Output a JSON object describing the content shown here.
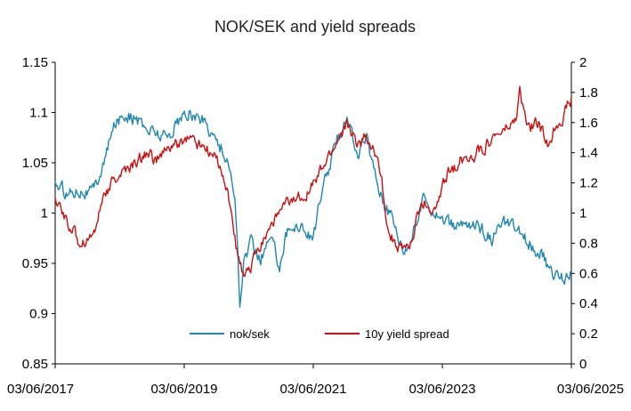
{
  "chart_data": {
    "type": "line",
    "title": "NOK/SEK and yield spreads",
    "grid": false,
    "legend_position": "bottom-center",
    "x_ticks": [
      "03/06/2017",
      "03/06/2019",
      "03/06/2021",
      "03/06/2023",
      "03/06/2025"
    ],
    "y_left": {
      "range": [
        0.85,
        1.15
      ],
      "ticks": [
        "0.85",
        "0.9",
        "0.95",
        "1",
        "1.05",
        "1.1",
        "1.15"
      ]
    },
    "y_right": {
      "range": [
        0,
        2
      ],
      "ticks": [
        "0",
        "0.2",
        "0.4",
        "0.6",
        "0.8",
        "1",
        "1.2",
        "1.4",
        "1.6",
        "1.8",
        "2"
      ]
    },
    "series": [
      {
        "name": "nok/sek",
        "axis": "left",
        "color": "#1f87b0",
        "x": [
          2017.42,
          2017.6,
          2017.8,
          2018.0,
          2018.2,
          2018.35,
          2018.5,
          2018.65,
          2018.8,
          2019.0,
          2019.15,
          2019.3,
          2019.5,
          2019.75,
          2019.9,
          2020.0,
          2020.1,
          2020.2,
          2020.24,
          2020.28,
          2020.35,
          2020.45,
          2020.6,
          2020.75,
          2020.9,
          2021.0,
          2021.2,
          2021.4,
          2021.6,
          2021.8,
          2021.95,
          2022.1,
          2022.25,
          2022.4,
          2022.55,
          2022.7,
          2022.85,
          2023.0,
          2023.15,
          2023.35,
          2023.6,
          2023.8,
          2024.0,
          2024.2,
          2024.4,
          2024.6,
          2024.8,
          2024.95,
          2025.1,
          2025.3,
          2025.42
        ],
        "y": [
          1.03,
          1.02,
          1.025,
          1.02,
          1.055,
          1.09,
          1.1,
          1.095,
          1.085,
          1.08,
          1.075,
          1.09,
          1.1,
          1.09,
          1.075,
          1.065,
          1.05,
          1.02,
          0.98,
          0.9,
          0.955,
          0.97,
          0.955,
          0.975,
          0.95,
          0.98,
          0.99,
          0.975,
          1.03,
          1.075,
          1.1,
          1.055,
          1.075,
          1.035,
          1.005,
          0.985,
          0.96,
          0.99,
          1.015,
          1.0,
          0.985,
          0.99,
          0.985,
          0.975,
          0.99,
          0.98,
          0.97,
          0.96,
          0.94,
          0.935,
          0.945
        ]
      },
      {
        "name": "10y yield spread",
        "axis": "right",
        "color": "#cc1010",
        "x": [
          2017.42,
          2017.6,
          2017.8,
          2018.0,
          2018.2,
          2018.4,
          2018.6,
          2018.85,
          2019.0,
          2019.25,
          2019.5,
          2019.7,
          2019.9,
          2020.0,
          2020.15,
          2020.25,
          2020.35,
          2020.45,
          2020.6,
          2020.8,
          2021.0,
          2021.2,
          2021.45,
          2021.7,
          2021.95,
          2022.1,
          2022.25,
          2022.45,
          2022.6,
          2022.8,
          2022.95,
          2023.1,
          2023.3,
          2023.5,
          2023.7,
          2023.95,
          2024.2,
          2024.4,
          2024.55,
          2024.62,
          2024.75,
          2024.9,
          2025.05,
          2025.2,
          2025.3,
          2025.42
        ],
        "y": [
          1.1,
          0.95,
          0.8,
          0.85,
          1.15,
          1.25,
          1.3,
          1.4,
          1.35,
          1.45,
          1.5,
          1.45,
          1.35,
          1.3,
          1.0,
          0.7,
          0.55,
          0.65,
          0.8,
          0.95,
          1.05,
          1.1,
          1.2,
          1.4,
          1.6,
          1.45,
          1.5,
          1.3,
          0.85,
          0.75,
          0.8,
          1.1,
          1.0,
          1.25,
          1.35,
          1.4,
          1.5,
          1.55,
          1.6,
          1.8,
          1.55,
          1.6,
          1.45,
          1.6,
          1.65,
          1.75
        ]
      }
    ]
  }
}
